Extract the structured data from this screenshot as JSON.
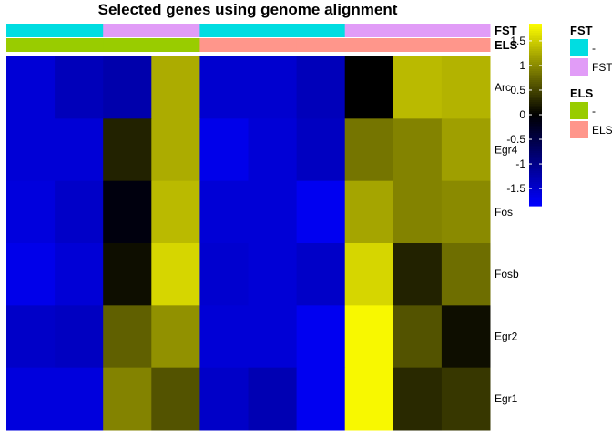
{
  "chart_data": {
    "type": "heatmap",
    "title": "Selected genes using genome alignment",
    "rows": [
      "Arc",
      "Egr4",
      "Fos",
      "Fosb",
      "Egr2",
      "Egr1"
    ],
    "n_columns": 10,
    "values": [
      [
        -1.55,
        -1.35,
        -1.25,
        1.25,
        -1.5,
        -1.5,
        -1.35,
        0.0,
        1.35,
        1.3
      ],
      [
        -1.55,
        -1.55,
        0.25,
        1.25,
        -1.7,
        -1.55,
        -1.4,
        0.85,
        0.95,
        1.15
      ],
      [
        -1.6,
        -1.45,
        -0.1,
        1.35,
        -1.55,
        -1.55,
        -1.75,
        1.2,
        0.95,
        1.0
      ],
      [
        -1.7,
        -1.55,
        0.1,
        1.55,
        -1.5,
        -1.55,
        -1.45,
        1.55,
        0.25,
        0.8
      ],
      [
        -1.45,
        -1.4,
        0.7,
        1.05,
        -1.55,
        -1.55,
        -1.75,
        1.8,
        0.6,
        0.1
      ],
      [
        -1.6,
        -1.6,
        0.95,
        0.6,
        -1.45,
        -1.3,
        -1.75,
        1.8,
        0.3,
        0.4
      ]
    ],
    "annotations": [
      {
        "name": "FST",
        "values": [
          "-",
          "-",
          "FST",
          "FST",
          "-",
          "-",
          "-",
          "FST",
          "FST",
          "FST"
        ]
      },
      {
        "name": "ELS",
        "values": [
          "-",
          "-",
          "-",
          "-",
          "ELS",
          "ELS",
          "ELS",
          "ELS",
          "ELS",
          "ELS"
        ]
      }
    ],
    "colorbar": {
      "ticks": [
        1.5,
        1,
        0.5,
        0,
        -0.5,
        -1,
        -1.5
      ],
      "tick_labels": [
        "1.5",
        "1",
        "0.5",
        "0",
        "-0.5",
        "-1",
        "-1.5"
      ],
      "range": [
        -1.85,
        1.85
      ],
      "colors": {
        "low": "#0000ff",
        "mid": "#000000",
        "high": "#ffff00"
      }
    },
    "legend": {
      "placement": "right",
      "groups": [
        {
          "title": "FST",
          "items": [
            {
              "label": "-",
              "color": "#00dde1"
            },
            {
              "label": "FST",
              "color": "#e19cf7"
            }
          ]
        },
        {
          "title": "ELS",
          "items": [
            {
              "label": "-",
              "color": "#99cc00"
            },
            {
              "label": "ELS",
              "color": "#ff968b"
            }
          ]
        }
      ]
    }
  }
}
